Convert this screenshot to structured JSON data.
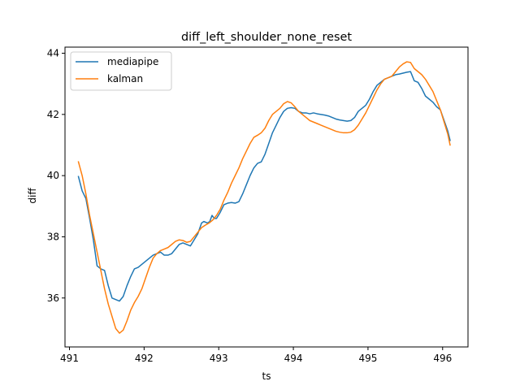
{
  "chart_data": {
    "type": "line",
    "title": "diff_left_shoulder_none_reset",
    "xlabel": "ts",
    "ylabel": "diff",
    "xlim": [
      490.94,
      496.34
    ],
    "ylim": [
      34.4,
      44.2
    ],
    "xticks": [
      491,
      492,
      493,
      494,
      495,
      496
    ],
    "yticks": [
      36,
      38,
      40,
      42,
      44
    ],
    "grid": false,
    "legend_position": "upper-left",
    "series": [
      {
        "name": "mediapipe",
        "color": "#1f77b4",
        "points": [
          [
            491.12,
            39.97
          ],
          [
            491.17,
            39.5
          ],
          [
            491.22,
            39.25
          ],
          [
            491.27,
            38.6
          ],
          [
            491.32,
            37.9
          ],
          [
            491.37,
            37.05
          ],
          [
            491.42,
            36.95
          ],
          [
            491.47,
            36.9
          ],
          [
            491.52,
            36.4
          ],
          [
            491.57,
            36.0
          ],
          [
            491.62,
            35.95
          ],
          [
            491.67,
            35.9
          ],
          [
            491.72,
            36.05
          ],
          [
            491.77,
            36.4
          ],
          [
            491.82,
            36.7
          ],
          [
            491.87,
            36.95
          ],
          [
            491.92,
            37.0
          ],
          [
            491.97,
            37.1
          ],
          [
            492.02,
            37.2
          ],
          [
            492.07,
            37.3
          ],
          [
            492.12,
            37.4
          ],
          [
            492.17,
            37.45
          ],
          [
            492.22,
            37.5
          ],
          [
            492.27,
            37.4
          ],
          [
            492.32,
            37.4
          ],
          [
            492.37,
            37.45
          ],
          [
            492.42,
            37.6
          ],
          [
            492.47,
            37.75
          ],
          [
            492.52,
            37.8
          ],
          [
            492.57,
            37.75
          ],
          [
            492.62,
            37.7
          ],
          [
            492.67,
            37.9
          ],
          [
            492.72,
            38.1
          ],
          [
            492.77,
            38.45
          ],
          [
            492.8,
            38.5
          ],
          [
            492.85,
            38.45
          ],
          [
            492.88,
            38.5
          ],
          [
            492.91,
            38.7
          ],
          [
            492.94,
            38.6
          ],
          [
            492.97,
            38.6
          ],
          [
            493.02,
            38.8
          ],
          [
            493.07,
            39.05
          ],
          [
            493.12,
            39.1
          ],
          [
            493.17,
            39.12
          ],
          [
            493.22,
            39.1
          ],
          [
            493.27,
            39.15
          ],
          [
            493.32,
            39.4
          ],
          [
            493.37,
            39.7
          ],
          [
            493.42,
            40.0
          ],
          [
            493.47,
            40.25
          ],
          [
            493.52,
            40.4
          ],
          [
            493.57,
            40.45
          ],
          [
            493.62,
            40.7
          ],
          [
            493.67,
            41.05
          ],
          [
            493.72,
            41.4
          ],
          [
            493.77,
            41.65
          ],
          [
            493.82,
            41.9
          ],
          [
            493.87,
            42.1
          ],
          [
            493.92,
            42.2
          ],
          [
            493.97,
            42.22
          ],
          [
            494.02,
            42.2
          ],
          [
            494.07,
            42.1
          ],
          [
            494.12,
            42.05
          ],
          [
            494.17,
            42.05
          ],
          [
            494.22,
            42.02
          ],
          [
            494.27,
            42.05
          ],
          [
            494.32,
            42.02
          ],
          [
            494.37,
            42.0
          ],
          [
            494.42,
            41.98
          ],
          [
            494.47,
            41.95
          ],
          [
            494.52,
            41.9
          ],
          [
            494.57,
            41.85
          ],
          [
            494.62,
            41.82
          ],
          [
            494.67,
            41.8
          ],
          [
            494.72,
            41.78
          ],
          [
            494.77,
            41.8
          ],
          [
            494.82,
            41.9
          ],
          [
            494.87,
            42.1
          ],
          [
            494.92,
            42.2
          ],
          [
            494.97,
            42.3
          ],
          [
            495.02,
            42.5
          ],
          [
            495.07,
            42.75
          ],
          [
            495.12,
            42.95
          ],
          [
            495.17,
            43.05
          ],
          [
            495.22,
            43.15
          ],
          [
            495.27,
            43.2
          ],
          [
            495.32,
            43.25
          ],
          [
            495.37,
            43.3
          ],
          [
            495.42,
            43.32
          ],
          [
            495.47,
            43.35
          ],
          [
            495.52,
            43.38
          ],
          [
            495.57,
            43.4
          ],
          [
            495.62,
            43.1
          ],
          [
            495.67,
            43.05
          ],
          [
            495.72,
            42.85
          ],
          [
            495.77,
            42.6
          ],
          [
            495.82,
            42.5
          ],
          [
            495.87,
            42.4
          ],
          [
            495.92,
            42.25
          ],
          [
            495.97,
            42.15
          ],
          [
            496.02,
            41.8
          ],
          [
            496.07,
            41.45
          ],
          [
            496.1,
            41.15
          ]
        ]
      },
      {
        "name": "kalman",
        "color": "#ff7f0e",
        "points": [
          [
            491.12,
            40.45
          ],
          [
            491.17,
            40.0
          ],
          [
            491.22,
            39.4
          ],
          [
            491.27,
            38.7
          ],
          [
            491.32,
            38.1
          ],
          [
            491.37,
            37.5
          ],
          [
            491.42,
            36.9
          ],
          [
            491.47,
            36.3
          ],
          [
            491.52,
            35.8
          ],
          [
            491.57,
            35.4
          ],
          [
            491.62,
            35.0
          ],
          [
            491.67,
            34.85
          ],
          [
            491.72,
            34.95
          ],
          [
            491.77,
            35.25
          ],
          [
            491.82,
            35.6
          ],
          [
            491.87,
            35.85
          ],
          [
            491.92,
            36.05
          ],
          [
            491.97,
            36.3
          ],
          [
            492.02,
            36.65
          ],
          [
            492.07,
            37.0
          ],
          [
            492.12,
            37.3
          ],
          [
            492.17,
            37.45
          ],
          [
            492.22,
            37.55
          ],
          [
            492.27,
            37.6
          ],
          [
            492.32,
            37.65
          ],
          [
            492.37,
            37.75
          ],
          [
            492.42,
            37.85
          ],
          [
            492.47,
            37.9
          ],
          [
            492.52,
            37.88
          ],
          [
            492.57,
            37.82
          ],
          [
            492.62,
            37.85
          ],
          [
            492.67,
            38.0
          ],
          [
            492.72,
            38.15
          ],
          [
            492.77,
            38.3
          ],
          [
            492.82,
            38.38
          ],
          [
            492.87,
            38.45
          ],
          [
            492.92,
            38.55
          ],
          [
            492.97,
            38.7
          ],
          [
            493.02,
            38.9
          ],
          [
            493.07,
            39.2
          ],
          [
            493.12,
            39.45
          ],
          [
            493.17,
            39.75
          ],
          [
            493.22,
            40.0
          ],
          [
            493.27,
            40.25
          ],
          [
            493.32,
            40.55
          ],
          [
            493.37,
            40.8
          ],
          [
            493.42,
            41.05
          ],
          [
            493.47,
            41.25
          ],
          [
            493.52,
            41.32
          ],
          [
            493.57,
            41.4
          ],
          [
            493.62,
            41.55
          ],
          [
            493.67,
            41.8
          ],
          [
            493.72,
            42.0
          ],
          [
            493.77,
            42.1
          ],
          [
            493.82,
            42.2
          ],
          [
            493.87,
            42.35
          ],
          [
            493.92,
            42.42
          ],
          [
            493.97,
            42.38
          ],
          [
            494.02,
            42.25
          ],
          [
            494.07,
            42.1
          ],
          [
            494.12,
            42.0
          ],
          [
            494.17,
            41.9
          ],
          [
            494.22,
            41.8
          ],
          [
            494.27,
            41.75
          ],
          [
            494.32,
            41.7
          ],
          [
            494.37,
            41.65
          ],
          [
            494.42,
            41.6
          ],
          [
            494.47,
            41.55
          ],
          [
            494.52,
            41.5
          ],
          [
            494.57,
            41.45
          ],
          [
            494.62,
            41.42
          ],
          [
            494.67,
            41.4
          ],
          [
            494.72,
            41.4
          ],
          [
            494.77,
            41.42
          ],
          [
            494.82,
            41.5
          ],
          [
            494.87,
            41.65
          ],
          [
            494.92,
            41.85
          ],
          [
            494.97,
            42.05
          ],
          [
            495.02,
            42.3
          ],
          [
            495.07,
            42.55
          ],
          [
            495.12,
            42.8
          ],
          [
            495.17,
            43.0
          ],
          [
            495.22,
            43.15
          ],
          [
            495.27,
            43.2
          ],
          [
            495.32,
            43.25
          ],
          [
            495.37,
            43.4
          ],
          [
            495.42,
            43.55
          ],
          [
            495.47,
            43.65
          ],
          [
            495.52,
            43.72
          ],
          [
            495.57,
            43.7
          ],
          [
            495.62,
            43.5
          ],
          [
            495.67,
            43.4
          ],
          [
            495.72,
            43.3
          ],
          [
            495.77,
            43.15
          ],
          [
            495.82,
            42.95
          ],
          [
            495.87,
            42.75
          ],
          [
            495.92,
            42.45
          ],
          [
            495.97,
            42.15
          ],
          [
            496.02,
            41.75
          ],
          [
            496.07,
            41.35
          ],
          [
            496.1,
            41.0
          ]
        ]
      }
    ]
  }
}
